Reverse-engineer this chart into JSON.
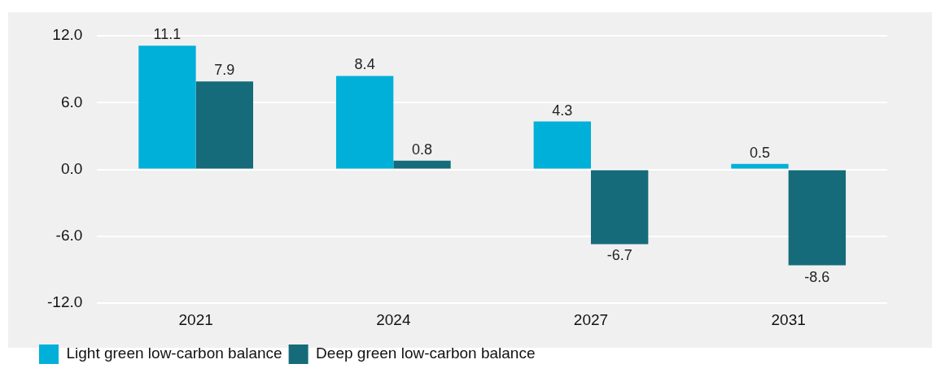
{
  "chart_data": {
    "type": "bar",
    "categories": [
      "2021",
      "2024",
      "2027",
      "2031"
    ],
    "series": [
      {
        "name": "Light green low-carbon balance",
        "color": "#00b0d8",
        "values": [
          11.1,
          8.4,
          4.3,
          0.5
        ]
      },
      {
        "name": "Deep green low-carbon balance",
        "color": "#156b7a",
        "values": [
          7.9,
          0.8,
          -6.7,
          -8.6
        ]
      }
    ],
    "ylim": [
      -12,
      12
    ],
    "yticks": [
      {
        "value": -12,
        "label": "-12.0"
      },
      {
        "value": -6,
        "label": "-6.0"
      },
      {
        "value": 0,
        "label": "0.0"
      },
      {
        "value": 6,
        "label": "6.0"
      },
      {
        "value": 12,
        "label": "12.0"
      }
    ],
    "grid": "y",
    "legend": "bottom left",
    "data_labels": true
  }
}
